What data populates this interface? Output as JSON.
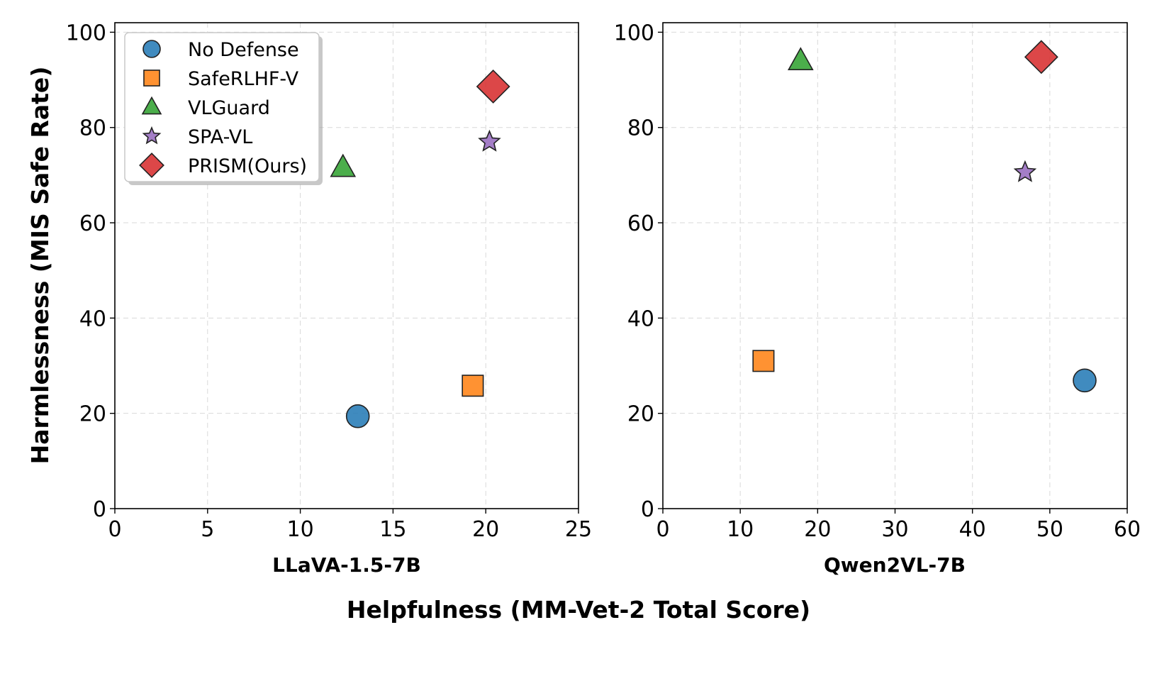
{
  "figure": {
    "ylabel": "Harmlessness (MIS Safe Rate)",
    "xlabel": "Helpfulness (MM-Vet-2 Total Score)"
  },
  "legend": {
    "position": "upper-left",
    "items": [
      {
        "label": "No Defense",
        "marker": "circle",
        "color": "#1f77b4"
      },
      {
        "label": "SafeRLHF-V",
        "marker": "square",
        "color": "#ff7f0e"
      },
      {
        "label": "VLGuard",
        "marker": "triangle",
        "color": "#2ca02c"
      },
      {
        "label": "SPA-VL",
        "marker": "star",
        "color": "#9467bd"
      },
      {
        "label": "PRISM(Ours)",
        "marker": "diamond",
        "color": "#d62728"
      }
    ]
  },
  "chart_data": [
    {
      "type": "scatter",
      "xlabel": "LLaVA-1.5-7B",
      "xlim": [
        0,
        25
      ],
      "ylim": [
        0,
        102
      ],
      "xticks": [
        "0",
        "5",
        "10",
        "15",
        "20",
        "25"
      ],
      "yticks": [
        "0",
        "20",
        "40",
        "60",
        "80",
        "100"
      ],
      "grid": true,
      "points": [
        {
          "series": "No Defense",
          "x": 13.1,
          "y": 19.4
        },
        {
          "series": "SafeRLHF-V",
          "x": 19.3,
          "y": 25.8
        },
        {
          "series": "VLGuard",
          "x": 12.3,
          "y": 71.6
        },
        {
          "series": "SPA-VL",
          "x": 20.2,
          "y": 77.0
        },
        {
          "series": "PRISM(Ours)",
          "x": 20.4,
          "y": 88.6
        }
      ]
    },
    {
      "type": "scatter",
      "xlabel": "Qwen2VL-7B",
      "xlim": [
        0,
        60
      ],
      "ylim": [
        0,
        102
      ],
      "xticks": [
        "0",
        "10",
        "20",
        "30",
        "40",
        "50",
        "60"
      ],
      "yticks": [
        "0",
        "20",
        "40",
        "60",
        "80",
        "100"
      ],
      "grid": true,
      "points": [
        {
          "series": "No Defense",
          "x": 54.5,
          "y": 26.9
        },
        {
          "series": "SafeRLHF-V",
          "x": 13.0,
          "y": 31.0
        },
        {
          "series": "VLGuard",
          "x": 17.8,
          "y": 94.0
        },
        {
          "series": "SPA-VL",
          "x": 46.8,
          "y": 70.6
        },
        {
          "series": "PRISM(Ours)",
          "x": 48.9,
          "y": 94.8
        }
      ]
    }
  ]
}
